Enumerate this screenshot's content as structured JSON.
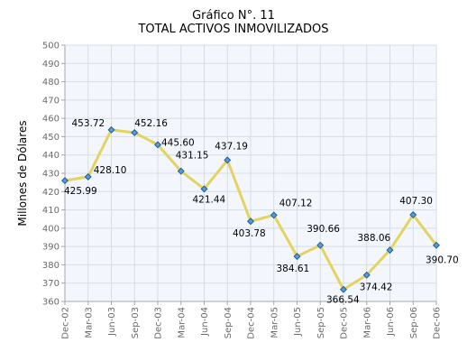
{
  "chart_data": {
    "type": "line",
    "title": "Gráfico N°. 11",
    "subtitle": "TOTAL ACTIVOS INMOVILIZADOS",
    "xlabel": "",
    "ylabel": "Millones de Dólares",
    "ylim": [
      360,
      500
    ],
    "yticks": [
      360,
      370,
      380,
      390,
      400,
      410,
      420,
      430,
      440,
      450,
      460,
      470,
      480,
      490,
      500
    ],
    "grid": true,
    "categories": [
      "Dec-02",
      "Mar-03",
      "Jun-03",
      "Sep-03",
      "Dec-03",
      "Mar-04",
      "Jun-04",
      "Sep-04",
      "Dec-04",
      "Mar-05",
      "Jun-05",
      "Sep-05",
      "Dec-05",
      "Mar-06",
      "Jun-06",
      "Sep-06",
      "Dec-06"
    ],
    "values": [
      425.99,
      428.1,
      453.72,
      452.16,
      445.6,
      431.15,
      421.44,
      437.19,
      403.78,
      407.12,
      384.61,
      390.66,
      366.54,
      374.42,
      388.06,
      407.3,
      390.7
    ],
    "data_labels": [
      "425.99",
      "428.10",
      "453.72",
      "452.16",
      "445.60",
      "431.15",
      "421.44",
      "437.19",
      "403.78",
      "407.12",
      "384.61",
      "390.66",
      "366.54",
      "374.42",
      "388.06",
      "407.30",
      "390.70"
    ],
    "colors": {
      "line": "#e3d35f",
      "marker_fill": "#5a9bd5",
      "marker_stroke": "#1f5f9a",
      "plot_background": "#f3f7fd",
      "grid": "#d6dce6",
      "axis": "#a6a6a6"
    }
  }
}
